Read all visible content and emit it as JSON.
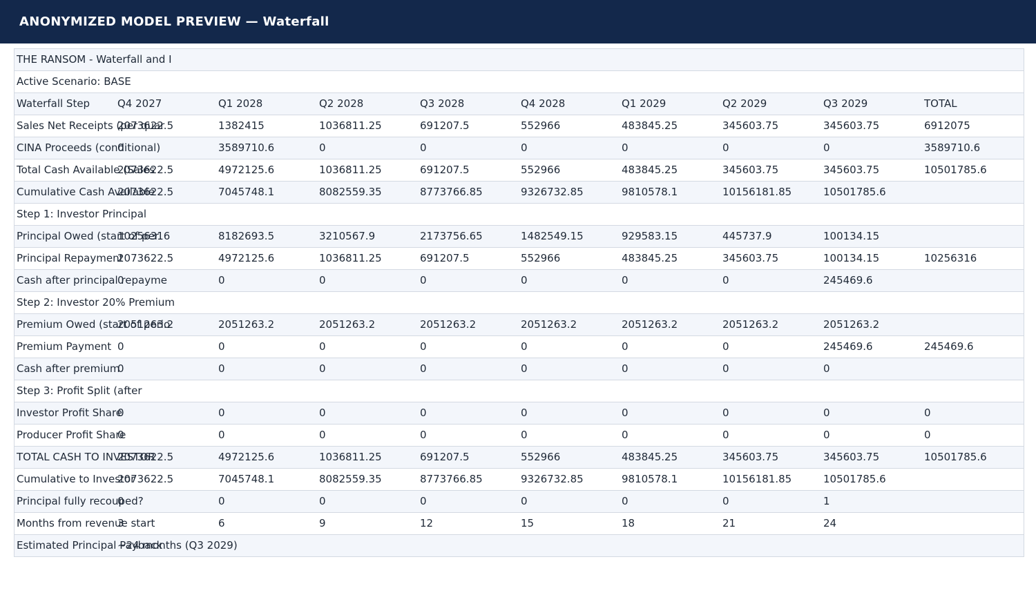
{
  "header": {
    "title": "ANONYMIZED MODEL PREVIEW — Waterfall"
  },
  "sheet": {
    "rows": [
      [
        "THE RANSOM - Waterfall and I",
        "",
        "",
        "",
        "",
        "",
        "",
        "",
        "",
        ""
      ],
      [
        "Active Scenario: BASE",
        "",
        "",
        "",
        "",
        "",
        "",
        "",
        "",
        ""
      ],
      [
        "Waterfall Step",
        "Q4 2027",
        "Q1 2028",
        "Q2 2028",
        "Q3 2028",
        "Q4 2028",
        "Q1 2029",
        "Q2 2029",
        "Q3 2029",
        "TOTAL"
      ],
      [
        "Sales Net Receipts (per quar",
        "2073622.5",
        "1382415",
        "1036811.25",
        "691207.5",
        "552966",
        "483845.25",
        "345603.75",
        "345603.75",
        "6912075"
      ],
      [
        "CINA Proceeds (conditional)",
        "0",
        "3589710.6",
        "0",
        "0",
        "0",
        "0",
        "0",
        "0",
        "3589710.6"
      ],
      [
        "Total Cash Available (Sales",
        "2073622.5",
        "4972125.6",
        "1036811.25",
        "691207.5",
        "552966",
        "483845.25",
        "345603.75",
        "345603.75",
        "10501785.6"
      ],
      [
        "Cumulative Cash Available",
        "2073622.5",
        "7045748.1",
        "8082559.35",
        "8773766.85",
        "9326732.85",
        "9810578.1",
        "10156181.85",
        "10501785.6",
        ""
      ],
      [
        "Step 1: Investor Principal",
        "",
        "",
        "",
        "",
        "",
        "",
        "",
        "",
        ""
      ],
      [
        "Principal Owed (start of per",
        "10256316",
        "8182693.5",
        "3210567.9",
        "2173756.65",
        "1482549.15",
        "929583.15",
        "445737.9",
        "100134.15",
        ""
      ],
      [
        "Principal Repayment",
        "2073622.5",
        "4972125.6",
        "1036811.25",
        "691207.5",
        "552966",
        "483845.25",
        "345603.75",
        "100134.15",
        "10256316"
      ],
      [
        "Cash after principal repayme",
        "0",
        "0",
        "0",
        "0",
        "0",
        "0",
        "0",
        "245469.6",
        ""
      ],
      [
        "Step 2: Investor 20% Premium",
        "",
        "",
        "",
        "",
        "",
        "",
        "",
        "",
        ""
      ],
      [
        "Premium Owed (start of perio",
        "2051263.2",
        "2051263.2",
        "2051263.2",
        "2051263.2",
        "2051263.2",
        "2051263.2",
        "2051263.2",
        "2051263.2",
        ""
      ],
      [
        "Premium Payment",
        "0",
        "0",
        "0",
        "0",
        "0",
        "0",
        "0",
        "245469.6",
        "245469.6"
      ],
      [
        "Cash after premium",
        "0",
        "0",
        "0",
        "0",
        "0",
        "0",
        "0",
        "0",
        ""
      ],
      [
        "Step 3: Profit Split (after",
        "",
        "",
        "",
        "",
        "",
        "",
        "",
        "",
        ""
      ],
      [
        "Investor Profit Share",
        "0",
        "0",
        "0",
        "0",
        "0",
        "0",
        "0",
        "0",
        "0"
      ],
      [
        "Producer Profit Share",
        "0",
        "0",
        "0",
        "0",
        "0",
        "0",
        "0",
        "0",
        "0"
      ],
      [
        "TOTAL CASH TO INVESTOR",
        "2073622.5",
        "4972125.6",
        "1036811.25",
        "691207.5",
        "552966",
        "483845.25",
        "345603.75",
        "345603.75",
        "10501785.6"
      ],
      [
        "Cumulative to Investor",
        "2073622.5",
        "7045748.1",
        "8082559.35",
        "8773766.85",
        "9326732.85",
        "9810578.1",
        "10156181.85",
        "10501785.6",
        ""
      ],
      [
        "Principal fully recouped?",
        "0",
        "0",
        "0",
        "0",
        "0",
        "0",
        "0",
        "1",
        ""
      ],
      [
        "Months from revenue start",
        "3",
        "6",
        "9",
        "12",
        "15",
        "18",
        "21",
        "24",
        ""
      ],
      [
        "Estimated Principal Payback",
        "~24 months (Q3 2029)",
        "",
        "",
        "",
        "",
        "",
        "",
        "",
        ""
      ]
    ]
  }
}
